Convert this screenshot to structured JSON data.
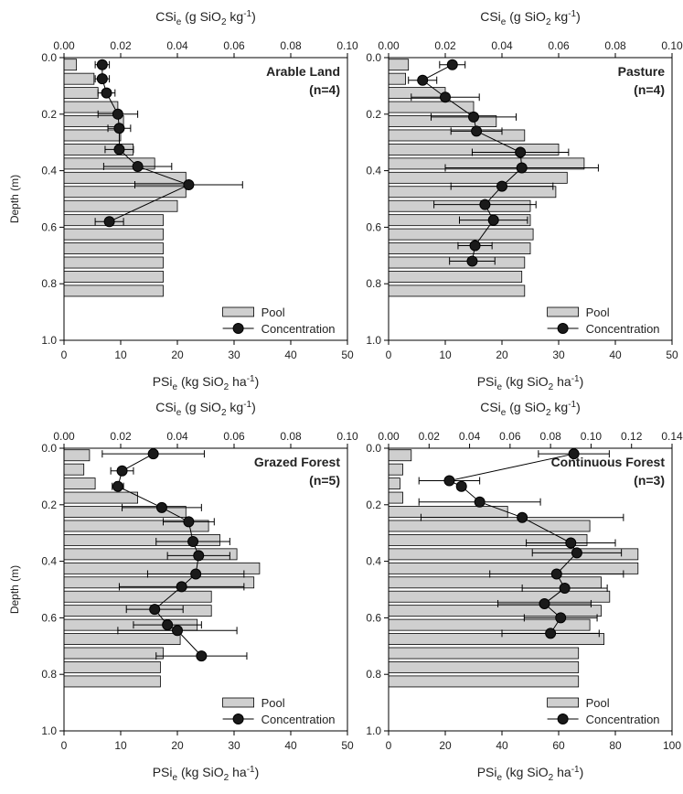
{
  "colors": {
    "bar_fill": "#cfcfcf",
    "bar_stroke": "#000000",
    "marker": "#1a1a1a",
    "axis": "#000000"
  },
  "legend": {
    "pool": "Pool",
    "concentration": "Concentration"
  },
  "chart_data": [
    {
      "type": "bar+line",
      "title": "Arable Land",
      "subtitle": "(n=4)",
      "ylabel": "Depth (m)",
      "ylim": [
        1.0,
        0.0
      ],
      "yticks": [
        "0.0",
        "0.2",
        "0.4",
        "0.6",
        "0.8",
        "1.0"
      ],
      "bottom_axis": {
        "label_main": "PSi",
        "label_sub": "e",
        "label_rest": " (kg SiO",
        "label_sub2": "2",
        "label_tail": " ha",
        "label_sup": "-1",
        "label_end": ")",
        "lim": [
          0,
          50
        ],
        "ticks": [
          "0",
          "10",
          "20",
          "30",
          "40",
          "50"
        ]
      },
      "top_axis": {
        "label_main": "CSi",
        "label_sub": "e",
        "label_rest": " (g SiO",
        "label_sub2": "2",
        "label_tail": " kg",
        "label_sup": "-1",
        "label_end": ")",
        "lim": [
          0,
          0.1
        ],
        "ticks": [
          "0.00",
          "0.02",
          "0.04",
          "0.06",
          "0.08",
          "0.10"
        ]
      },
      "pool": [
        {
          "depth": 0.025,
          "value": 2.2
        },
        {
          "depth": 0.075,
          "value": 5.3
        },
        {
          "depth": 0.125,
          "value": 6.0
        },
        {
          "depth": 0.175,
          "value": 9.5
        },
        {
          "depth": 0.225,
          "value": 10.5
        },
        {
          "depth": 0.275,
          "value": 10.0
        },
        {
          "depth": 0.325,
          "value": 12.2
        },
        {
          "depth": 0.375,
          "value": 16.0
        },
        {
          "depth": 0.425,
          "value": 21.5
        },
        {
          "depth": 0.475,
          "value": 21.5
        },
        {
          "depth": 0.525,
          "value": 20.0
        },
        {
          "depth": 0.575,
          "value": 17.5
        },
        {
          "depth": 0.625,
          "value": 17.5
        },
        {
          "depth": 0.675,
          "value": 17.5
        },
        {
          "depth": 0.725,
          "value": 17.5
        },
        {
          "depth": 0.775,
          "value": 17.5
        },
        {
          "depth": 0.825,
          "value": 17.5
        }
      ],
      "concentration": [
        {
          "depth": 0.025,
          "value": 0.0135,
          "err": 0.0025
        },
        {
          "depth": 0.075,
          "value": 0.0135,
          "err": 0.0025
        },
        {
          "depth": 0.125,
          "value": 0.015,
          "err": 0.003
        },
        {
          "depth": 0.2,
          "value": 0.019,
          "err": 0.007
        },
        {
          "depth": 0.25,
          "value": 0.0195,
          "err": 0.004
        },
        {
          "depth": 0.325,
          "value": 0.0195,
          "err": 0.005
        },
        {
          "depth": 0.385,
          "value": 0.026,
          "err": 0.012
        },
        {
          "depth": 0.45,
          "value": 0.044,
          "err": 0.019
        },
        {
          "depth": 0.58,
          "value": 0.016,
          "err": 0.005
        }
      ],
      "legend_placement": "bottom-right"
    },
    {
      "type": "bar+line",
      "title": "Pasture",
      "subtitle": "(n=4)",
      "ylabel": "",
      "ylim": [
        1.0,
        0.0
      ],
      "yticks": [
        "0.0",
        "0.2",
        "0.4",
        "0.6",
        "0.8",
        "1.0"
      ],
      "bottom_axis": {
        "label_main": "PSi",
        "label_sub": "e",
        "label_rest": " (kg SiO",
        "label_sub2": "2",
        "label_tail": " ha",
        "label_sup": "-1",
        "label_end": ")",
        "lim": [
          0,
          50
        ],
        "ticks": [
          "0",
          "10",
          "20",
          "30",
          "40",
          "50"
        ]
      },
      "top_axis": {
        "label_main": "CSi",
        "label_sub": "e",
        "label_rest": " (g SiO",
        "label_sub2": "2",
        "label_tail": " kg",
        "label_sup": "-1",
        "label_end": ")",
        "lim": [
          0,
          0.1
        ],
        "ticks": [
          "0.00",
          "0.02",
          "0.04",
          "0.06",
          "0.08",
          "0.10"
        ]
      },
      "pool": [
        {
          "depth": 0.025,
          "value": 3.5
        },
        {
          "depth": 0.075,
          "value": 3.0
        },
        {
          "depth": 0.125,
          "value": 10.0
        },
        {
          "depth": 0.175,
          "value": 15.0
        },
        {
          "depth": 0.225,
          "value": 19.0
        },
        {
          "depth": 0.275,
          "value": 24.0
        },
        {
          "depth": 0.325,
          "value": 30.0
        },
        {
          "depth": 0.375,
          "value": 34.5
        },
        {
          "depth": 0.425,
          "value": 31.5
        },
        {
          "depth": 0.475,
          "value": 29.5
        },
        {
          "depth": 0.525,
          "value": 25.0
        },
        {
          "depth": 0.575,
          "value": 25.0
        },
        {
          "depth": 0.625,
          "value": 25.5
        },
        {
          "depth": 0.675,
          "value": 25.0
        },
        {
          "depth": 0.725,
          "value": 24.0
        },
        {
          "depth": 0.775,
          "value": 23.5
        },
        {
          "depth": 0.825,
          "value": 24.0
        }
      ],
      "concentration": [
        {
          "depth": 0.025,
          "value": 0.0225,
          "err": 0.0045
        },
        {
          "depth": 0.08,
          "value": 0.012,
          "err": 0.005
        },
        {
          "depth": 0.14,
          "value": 0.02,
          "err": 0.012
        },
        {
          "depth": 0.21,
          "value": 0.03,
          "err": 0.015
        },
        {
          "depth": 0.26,
          "value": 0.031,
          "err": 0.009
        },
        {
          "depth": 0.335,
          "value": 0.0465,
          "err": 0.017
        },
        {
          "depth": 0.39,
          "value": 0.047,
          "err": 0.027
        },
        {
          "depth": 0.455,
          "value": 0.04,
          "err": 0.018
        },
        {
          "depth": 0.52,
          "value": 0.034,
          "err": 0.018
        },
        {
          "depth": 0.575,
          "value": 0.037,
          "err": 0.012
        },
        {
          "depth": 0.665,
          "value": 0.0305,
          "err": 0.006
        },
        {
          "depth": 0.72,
          "value": 0.0295,
          "err": 0.008
        }
      ],
      "legend_placement": "bottom-right"
    },
    {
      "type": "bar+line",
      "title": "Grazed Forest",
      "subtitle": "(n=5)",
      "ylabel": "Depth (m)",
      "ylim": [
        1.0,
        0.0
      ],
      "yticks": [
        "0.0",
        "0.2",
        "0.4",
        "0.6",
        "0.8",
        "1.0"
      ],
      "bottom_axis": {
        "label_main": "PSi",
        "label_sub": "e",
        "label_rest": " (kg SiO",
        "label_sub2": "2",
        "label_tail": " ha",
        "label_sup": "-1",
        "label_end": ")",
        "lim": [
          0,
          50
        ],
        "ticks": [
          "0",
          "10",
          "20",
          "30",
          "40",
          "50"
        ]
      },
      "top_axis": {
        "label_main": "CSi",
        "label_sub": "e",
        "label_rest": " (g SiO",
        "label_sub2": "2",
        "label_tail": " kg",
        "label_sup": "-1",
        "label_end": ")",
        "lim": [
          0,
          0.1
        ],
        "ticks": [
          "0.00",
          "0.02",
          "0.04",
          "0.06",
          "0.08",
          "0.10"
        ]
      },
      "pool": [
        {
          "depth": 0.025,
          "value": 4.5
        },
        {
          "depth": 0.075,
          "value": 3.5
        },
        {
          "depth": 0.125,
          "value": 5.5
        },
        {
          "depth": 0.175,
          "value": 13.0
        },
        {
          "depth": 0.225,
          "value": 21.5
        },
        {
          "depth": 0.275,
          "value": 25.5
        },
        {
          "depth": 0.325,
          "value": 27.5
        },
        {
          "depth": 0.375,
          "value": 30.5
        },
        {
          "depth": 0.425,
          "value": 34.5
        },
        {
          "depth": 0.475,
          "value": 33.5
        },
        {
          "depth": 0.525,
          "value": 26.0
        },
        {
          "depth": 0.575,
          "value": 26.0
        },
        {
          "depth": 0.625,
          "value": 23.5
        },
        {
          "depth": 0.675,
          "value": 20.5
        },
        {
          "depth": 0.725,
          "value": 17.5
        },
        {
          "depth": 0.775,
          "value": 17.0
        },
        {
          "depth": 0.825,
          "value": 17.0
        }
      ],
      "concentration": [
        {
          "depth": 0.02,
          "value": 0.0315,
          "err": 0.018
        },
        {
          "depth": 0.08,
          "value": 0.0205,
          "err": 0.004
        },
        {
          "depth": 0.135,
          "value": 0.019,
          "err": 0.002
        },
        {
          "depth": 0.21,
          "value": 0.0345,
          "err": 0.014
        },
        {
          "depth": 0.26,
          "value": 0.044,
          "err": 0.009
        },
        {
          "depth": 0.33,
          "value": 0.0455,
          "err": 0.013
        },
        {
          "depth": 0.38,
          "value": 0.0475,
          "err": 0.011
        },
        {
          "depth": 0.445,
          "value": 0.0465,
          "err": 0.017
        },
        {
          "depth": 0.49,
          "value": 0.0415,
          "err": 0.022
        },
        {
          "depth": 0.57,
          "value": 0.032,
          "err": 0.01
        },
        {
          "depth": 0.625,
          "value": 0.0365,
          "err": 0.012
        },
        {
          "depth": 0.645,
          "value": 0.04,
          "err": 0.021
        },
        {
          "depth": 0.735,
          "value": 0.0485,
          "err": 0.016
        }
      ],
      "legend_placement": "bottom-right"
    },
    {
      "type": "bar+line",
      "title": "Continuous Forest",
      "subtitle": "(n=3)",
      "ylabel": "",
      "ylim": [
        1.0,
        0.0
      ],
      "yticks": [
        "0.0",
        "0.2",
        "0.4",
        "0.6",
        "0.8",
        "1.0"
      ],
      "bottom_axis": {
        "label_main": "PSi",
        "label_sub": "e",
        "label_rest": " (kg SiO",
        "label_sub2": "2",
        "label_tail": " ha",
        "label_sup": "-1",
        "label_end": ")",
        "lim": [
          0,
          100
        ],
        "ticks": [
          "0",
          "20",
          "40",
          "60",
          "80",
          "100"
        ]
      },
      "top_axis": {
        "label_main": "CSi",
        "label_sub": "e",
        "label_rest": " (g SiO",
        "label_sub2": "2",
        "label_tail": " kg",
        "label_sup": "-1",
        "label_end": ")",
        "lim": [
          0,
          0.14
        ],
        "ticks": [
          "0.00",
          "0.02",
          "0.04",
          "0.06",
          "0.08",
          "0.10",
          "0.12",
          "0.14"
        ]
      },
      "pool": [
        {
          "depth": 0.025,
          "value": 8.0
        },
        {
          "depth": 0.075,
          "value": 5.0
        },
        {
          "depth": 0.125,
          "value": 4.0
        },
        {
          "depth": 0.175,
          "value": 5.0
        },
        {
          "depth": 0.225,
          "value": 42.0
        },
        {
          "depth": 0.275,
          "value": 71.0
        },
        {
          "depth": 0.325,
          "value": 70.0
        },
        {
          "depth": 0.375,
          "value": 88.0
        },
        {
          "depth": 0.425,
          "value": 88.0
        },
        {
          "depth": 0.475,
          "value": 75.0
        },
        {
          "depth": 0.525,
          "value": 78.0
        },
        {
          "depth": 0.575,
          "value": 75.0
        },
        {
          "depth": 0.625,
          "value": 71.0
        },
        {
          "depth": 0.675,
          "value": 76.0
        },
        {
          "depth": 0.725,
          "value": 67.0
        },
        {
          "depth": 0.775,
          "value": 67.0
        },
        {
          "depth": 0.825,
          "value": 67.0
        }
      ],
      "concentration": [
        {
          "depth": 0.02,
          "value": 0.0915,
          "err": 0.0175
        },
        {
          "depth": 0.115,
          "value": 0.03,
          "err": 0.015
        },
        {
          "depth": 0.135,
          "value": 0.036,
          "err": 0.002
        },
        {
          "depth": 0.19,
          "value": 0.045,
          "err": 0.03
        },
        {
          "depth": 0.245,
          "value": 0.066,
          "err": 0.05
        },
        {
          "depth": 0.335,
          "value": 0.09,
          "err": 0.022
        },
        {
          "depth": 0.37,
          "value": 0.093,
          "err": 0.022
        },
        {
          "depth": 0.445,
          "value": 0.083,
          "err": 0.033
        },
        {
          "depth": 0.495,
          "value": 0.087,
          "err": 0.021
        },
        {
          "depth": 0.55,
          "value": 0.077,
          "err": 0.023
        },
        {
          "depth": 0.6,
          "value": 0.085,
          "err": 0.018
        },
        {
          "depth": 0.655,
          "value": 0.08,
          "err": 0.024
        }
      ],
      "legend_placement": "bottom-right"
    }
  ]
}
